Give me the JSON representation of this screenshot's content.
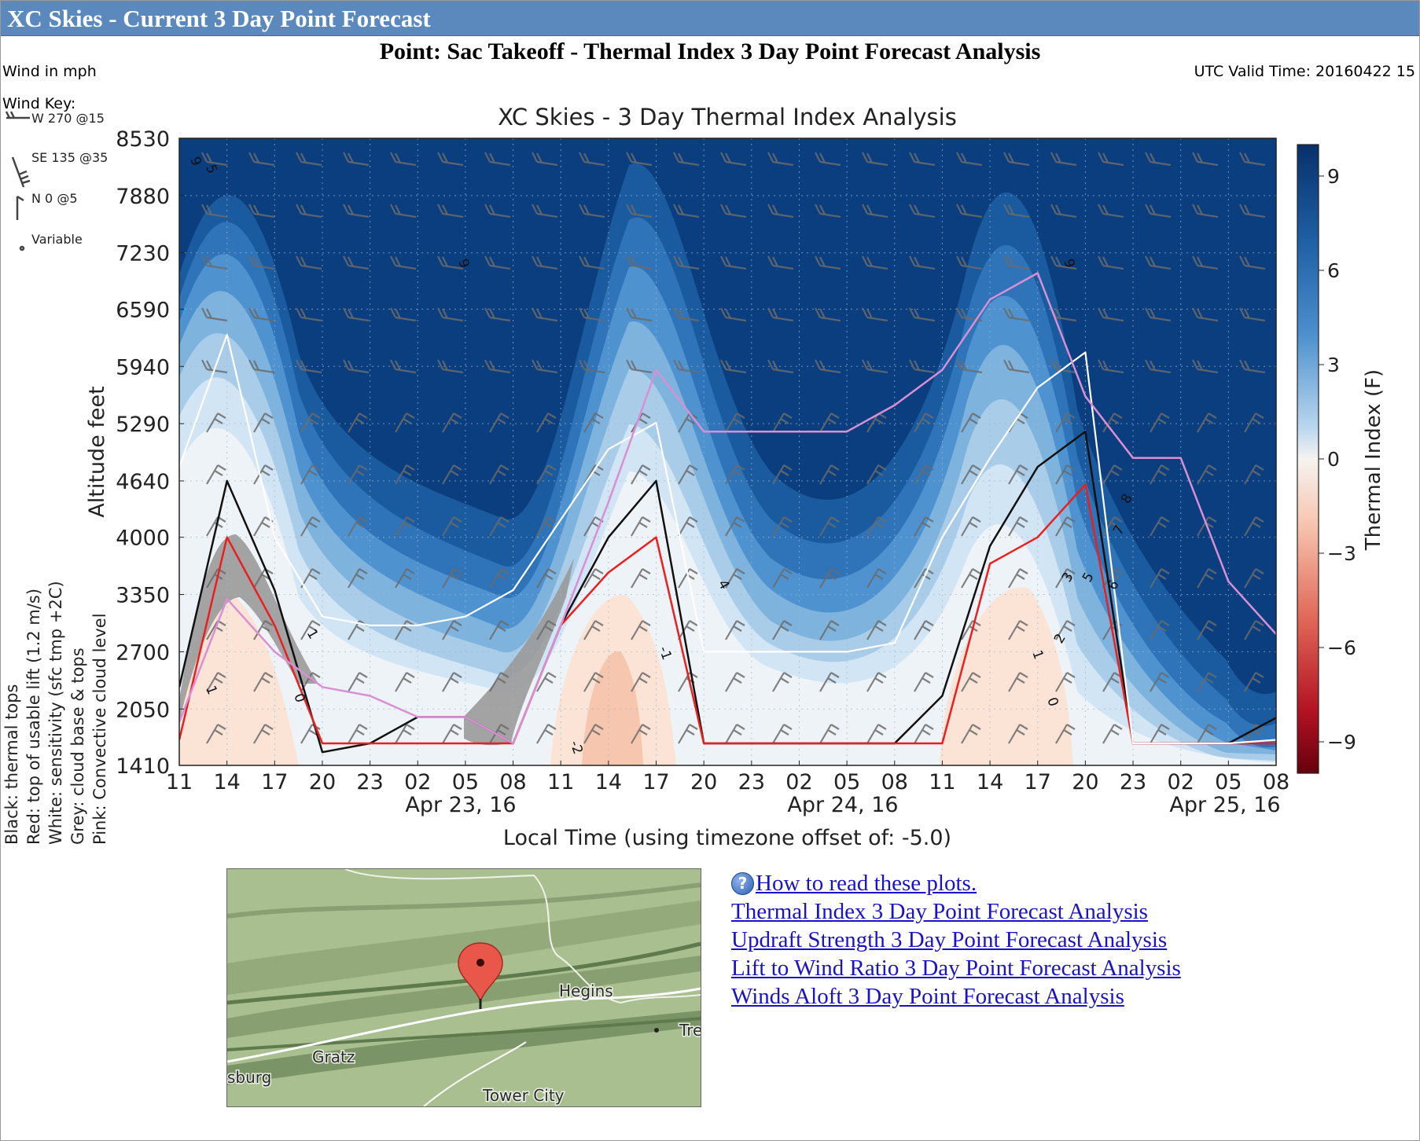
{
  "window": {
    "title": "XC Skies - Current 3 Day Point Forecast"
  },
  "heading": "Point: Sac Takeoff - Thermal Index 3 Day Point Forecast Analysis",
  "wind_units": "Wind in mph",
  "wind_key": {
    "label": "Wind Key:",
    "entries": [
      "W 270 @15",
      "SE 135 @35",
      "N 0 @5",
      "Variable"
    ]
  },
  "utc_valid_time": "UTC Valid Time: 20160422 15",
  "side_legend": [
    "Black: thermal tops",
    "Red: top of usable lift (1.2 m/s)",
    "White: sensitivity (sfc tmp +2C)",
    "Grey: cloud base & tops",
    "Pink: Convective cloud level"
  ],
  "chart_data": {
    "type": "heatmap",
    "title": "XC Skies - 3 Day Thermal Index Analysis",
    "xlabel": "Local Time (using timezone offset of: -5.0)",
    "ylabel": "Altitude feet",
    "colorbar_label": "Thermal Index (F)",
    "colorbar_ticks": [
      "9",
      "6",
      "3",
      "0",
      "−3",
      "−6",
      "−9"
    ],
    "x_ticks": [
      "11",
      "14",
      "17",
      "20",
      "23",
      "02",
      "05",
      "08",
      "11",
      "14",
      "17",
      "20",
      "23",
      "02",
      "05",
      "08",
      "11",
      "14",
      "17",
      "20",
      "23",
      "02",
      "05",
      "08"
    ],
    "date_labels": [
      "Apr 23, 16",
      "Apr 24, 16",
      "Apr 25, 16"
    ],
    "y_ticks": [
      8530,
      7880,
      7230,
      6590,
      5940,
      5290,
      4640,
      4000,
      3350,
      2700,
      2050,
      1410
    ],
    "ylim": [
      1410,
      8530
    ],
    "contour_labels": [
      "9",
      "5",
      "6",
      "9",
      "9",
      "8",
      "7",
      "6",
      "5",
      "4",
      "3",
      "2",
      "1",
      "0",
      "-1",
      "-2",
      "1",
      "1",
      "0"
    ],
    "series": [
      {
        "name": "Black: thermal tops",
        "x_hours": [
          0,
          3,
          6,
          9,
          12,
          15,
          18,
          21,
          24,
          27,
          30,
          33,
          36,
          39,
          42,
          45,
          48,
          51,
          54,
          57,
          60,
          63,
          66,
          69
        ],
        "values": [
          2300,
          4640,
          3400,
          1560,
          1660,
          1960,
          1960,
          1660,
          3000,
          4000,
          4640,
          1660,
          1660,
          1660,
          1660,
          1660,
          2200,
          3900,
          4800,
          5200,
          1660,
          1660,
          1660,
          1950
        ]
      },
      {
        "name": "Red: top of usable lift (1.2 m/s)",
        "x_hours": [
          0,
          3,
          6,
          9,
          12,
          15,
          18,
          21,
          24,
          27,
          30,
          33,
          36,
          39,
          42,
          45,
          48,
          51,
          54,
          57,
          60,
          63,
          66,
          69
        ],
        "values": [
          1700,
          4000,
          3000,
          1660,
          1660,
          1660,
          1660,
          1660,
          3000,
          3600,
          4000,
          1660,
          1660,
          1660,
          1660,
          1660,
          1660,
          3700,
          4000,
          4600,
          1660,
          1660,
          1660,
          1660
        ]
      },
      {
        "name": "White: sensitivity (sfc tmp +2C)",
        "x_hours": [
          0,
          3,
          6,
          9,
          12,
          15,
          18,
          21,
          24,
          27,
          30,
          33,
          36,
          39,
          42,
          45,
          48,
          51,
          54,
          57,
          60,
          63,
          66,
          69
        ],
        "values": [
          4800,
          6300,
          4000,
          3100,
          3000,
          3000,
          3100,
          3400,
          4200,
          5000,
          5300,
          2700,
          2700,
          2700,
          2700,
          2800,
          4000,
          4900,
          5700,
          6100,
          1660,
          1660,
          1660,
          1700
        ]
      },
      {
        "name": "Pink: Convective cloud level",
        "x_hours": [
          0,
          3,
          6,
          9,
          12,
          15,
          18,
          21,
          24,
          27,
          30,
          33,
          36,
          39,
          42,
          45,
          48,
          51,
          54,
          57,
          60,
          63,
          66,
          69
        ],
        "values": [
          1900,
          3300,
          2700,
          2300,
          2200,
          1960,
          1960,
          1660,
          3000,
          4400,
          5900,
          5200,
          5200,
          5200,
          5200,
          5500,
          5900,
          6700,
          7000,
          5600,
          4900,
          4900,
          3500,
          2900
        ]
      }
    ]
  },
  "map": {
    "labels": [
      "Hegins",
      "Gratz",
      "sburg",
      "Tower City",
      "Tre"
    ]
  },
  "links": {
    "help": "How to read these plots.",
    "items": [
      "Thermal Index 3 Day Point Forecast Analysis",
      "Updraft Strength 3 Day Point Forecast Analysis",
      "Lift to Wind Ratio 3 Day Point Forecast Analysis",
      "Winds Aloft 3 Day Point Forecast Analysis"
    ]
  },
  "colors": {
    "titlebar": "#5b89bd",
    "link": "#1a12c8",
    "thermal_tops": "#111111",
    "usable_lift": "#e8201f",
    "sensitivity": "#ffffff",
    "cloud_level": "#d98fd4",
    "cloud_fill": "#9a9a9a"
  }
}
